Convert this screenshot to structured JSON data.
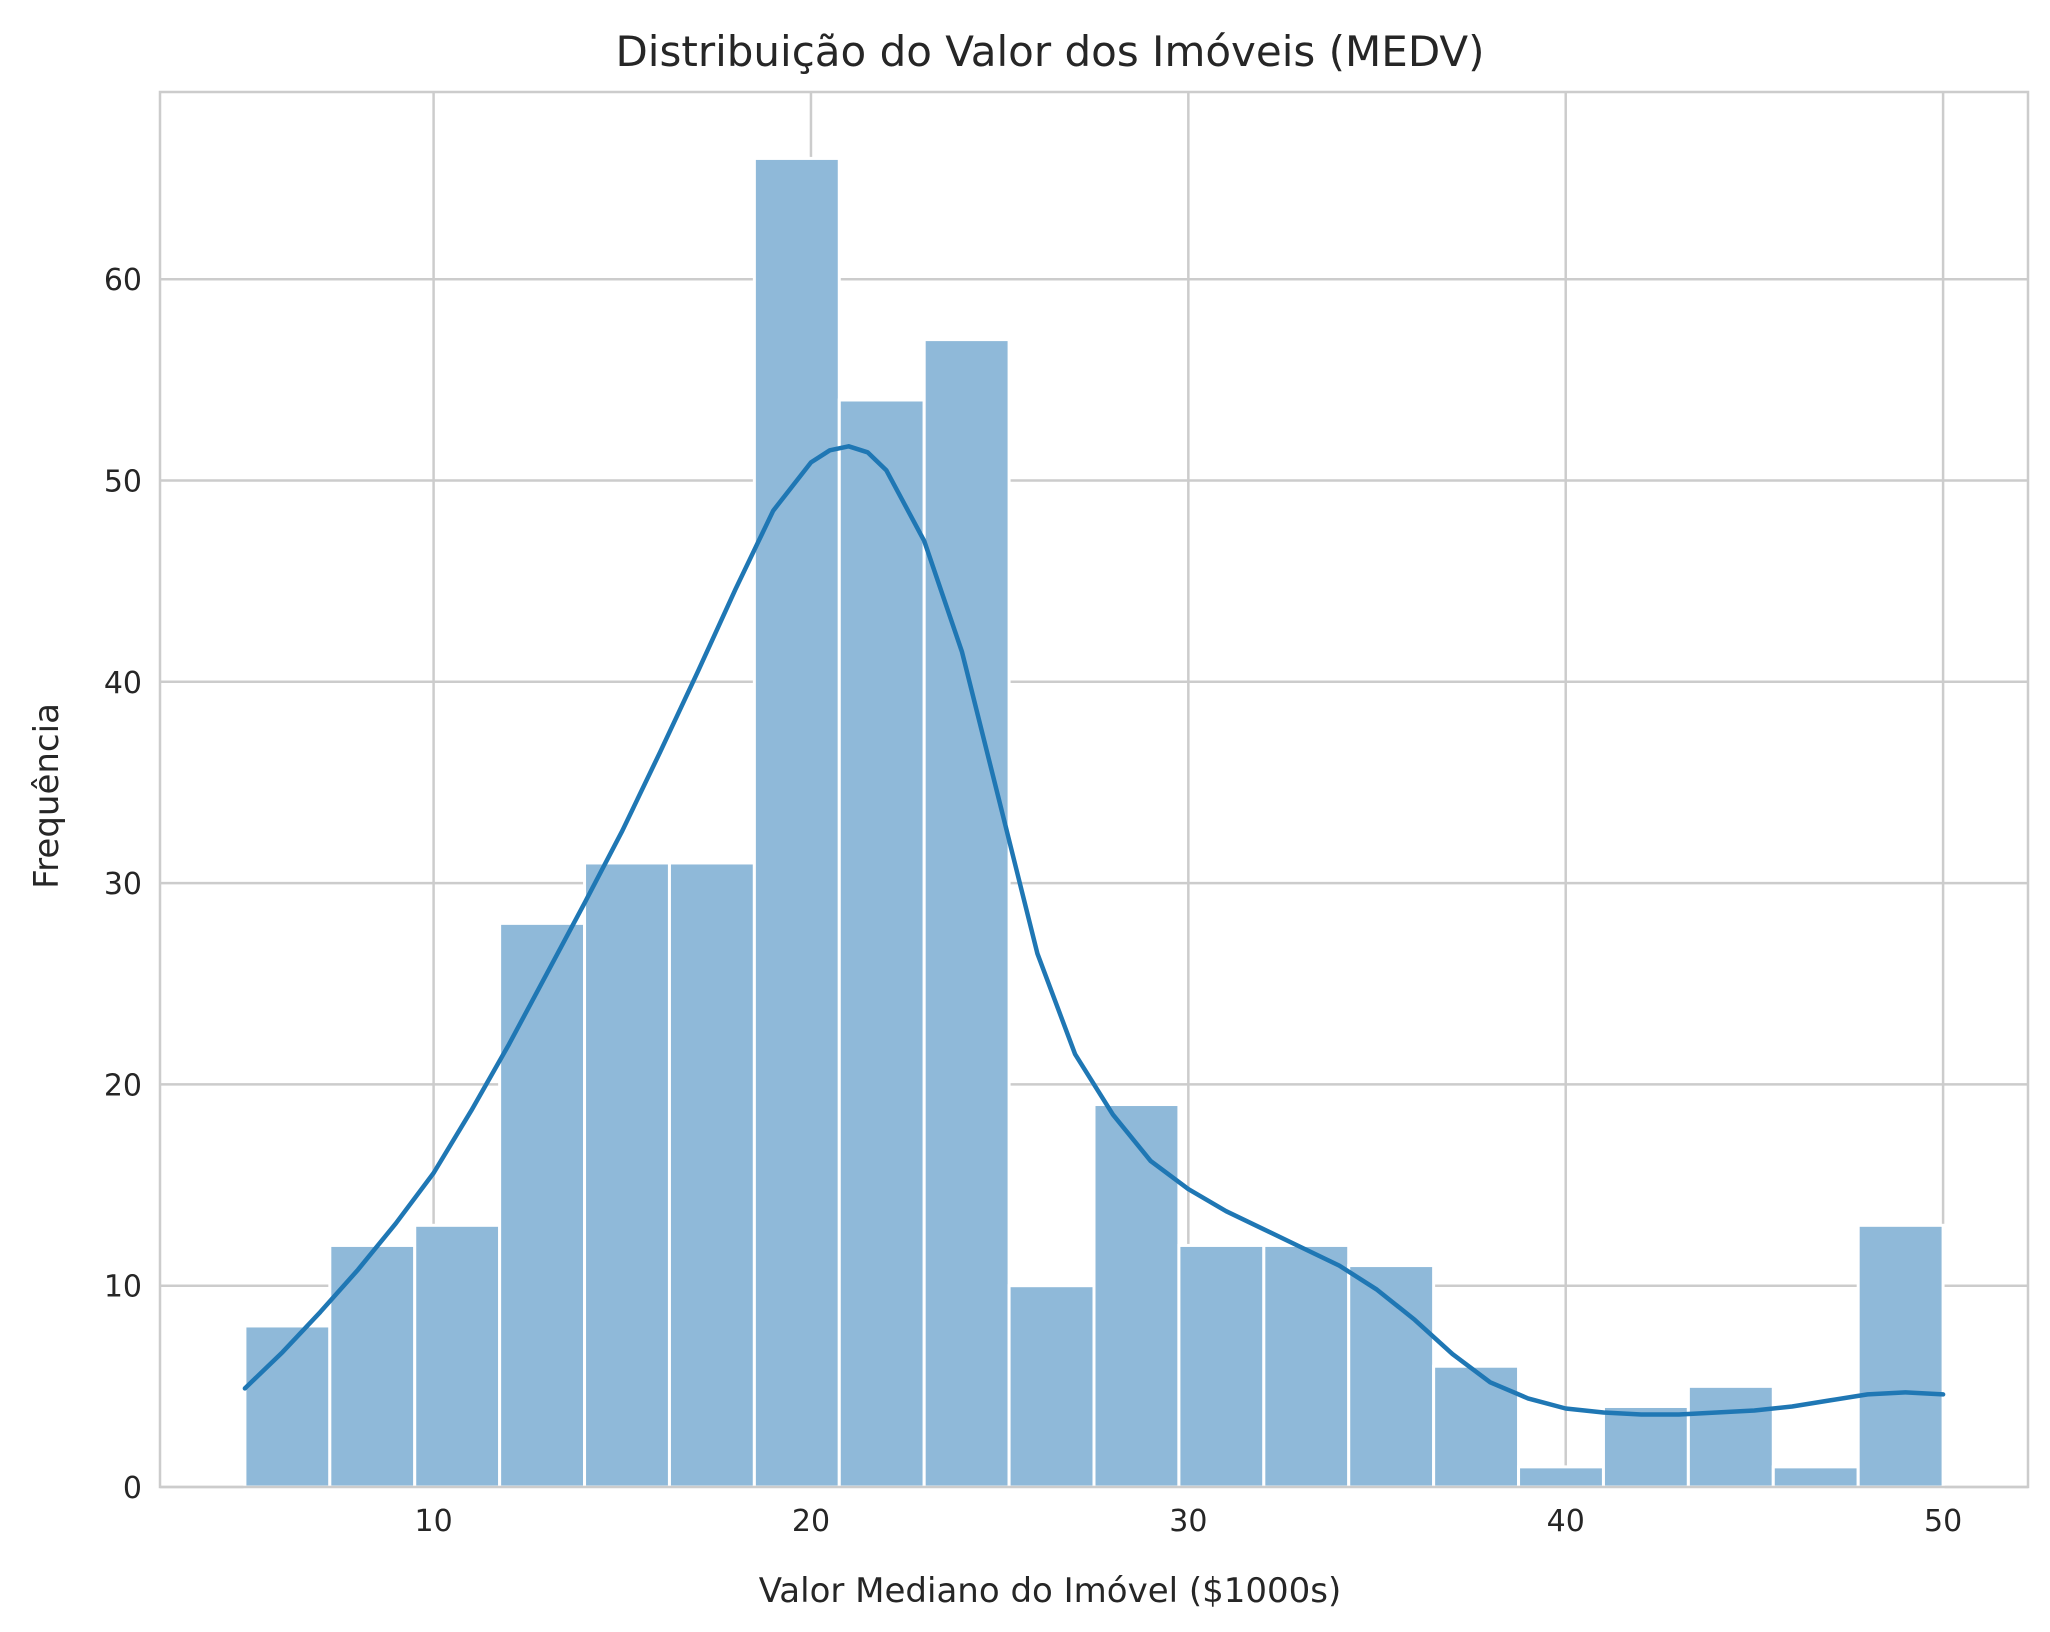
{
  "chart_data": {
    "type": "bar",
    "subtype": "histogram-with-kde",
    "title": "Distribuição do Valor dos Imóveis (MEDV)",
    "xlabel": "Valor Mediano do Imóvel ($1000s)",
    "ylabel": "Frequência",
    "xlim": [
      2.75,
      52.25
    ],
    "ylim": [
      0,
      69.3
    ],
    "xticks": [
      10,
      20,
      30,
      40,
      50
    ],
    "yticks": [
      0,
      10,
      20,
      30,
      40,
      50,
      60
    ],
    "grid": true,
    "bins": [
      {
        "x0": 5.0,
        "x1": 7.25,
        "count": 8
      },
      {
        "x0": 7.25,
        "x1": 9.5,
        "count": 12
      },
      {
        "x0": 9.5,
        "x1": 11.75,
        "count": 13
      },
      {
        "x0": 11.75,
        "x1": 14.0,
        "count": 28
      },
      {
        "x0": 14.0,
        "x1": 16.25,
        "count": 31
      },
      {
        "x0": 16.25,
        "x1": 18.5,
        "count": 31
      },
      {
        "x0": 18.5,
        "x1": 20.75,
        "count": 66
      },
      {
        "x0": 20.75,
        "x1": 23.0,
        "count": 54
      },
      {
        "x0": 23.0,
        "x1": 25.25,
        "count": 57
      },
      {
        "x0": 25.25,
        "x1": 27.5,
        "count": 10
      },
      {
        "x0": 27.5,
        "x1": 29.75,
        "count": 19
      },
      {
        "x0": 29.75,
        "x1": 32.0,
        "count": 12
      },
      {
        "x0": 32.0,
        "x1": 34.25,
        "count": 12
      },
      {
        "x0": 34.25,
        "x1": 36.5,
        "count": 11
      },
      {
        "x0": 36.5,
        "x1": 38.75,
        "count": 6
      },
      {
        "x0": 38.75,
        "x1": 41.0,
        "count": 1
      },
      {
        "x0": 41.0,
        "x1": 43.25,
        "count": 4
      },
      {
        "x0": 43.25,
        "x1": 45.5,
        "count": 5
      },
      {
        "x0": 45.5,
        "x1": 47.75,
        "count": 1
      },
      {
        "x0": 47.75,
        "x1": 50.0,
        "count": 13
      }
    ],
    "kde": {
      "x": [
        5,
        6,
        7,
        8,
        9,
        10,
        11,
        12,
        13,
        14,
        15,
        16,
        17,
        18,
        19,
        20,
        20.5,
        21,
        21.5,
        22,
        23,
        24,
        25,
        26,
        27,
        28,
        29,
        30,
        31,
        32,
        33,
        34,
        35,
        36,
        37,
        38,
        39,
        40,
        41,
        42,
        43,
        44,
        45,
        46,
        47,
        48,
        49,
        50
      ],
      "y": [
        4.9,
        6.7,
        8.7,
        10.8,
        13.1,
        15.6,
        18.7,
        22.0,
        25.5,
        29.0,
        32.6,
        36.5,
        40.5,
        44.6,
        48.5,
        50.9,
        51.5,
        51.7,
        51.4,
        50.5,
        47.0,
        41.5,
        34.0,
        26.5,
        21.5,
        18.5,
        16.2,
        14.8,
        13.7,
        12.8,
        11.9,
        11.0,
        9.8,
        8.3,
        6.6,
        5.2,
        4.4,
        3.9,
        3.7,
        3.6,
        3.6,
        3.7,
        3.8,
        4.0,
        4.3,
        4.6,
        4.7,
        4.6
      ]
    },
    "colors": {
      "bar_fill": "#8fb9d9",
      "kde_line": "#1f77b4",
      "grid": "#cccccc",
      "text": "#262626"
    }
  }
}
